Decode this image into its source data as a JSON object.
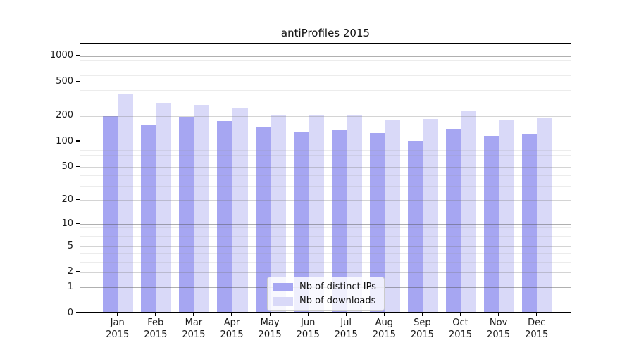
{
  "title": "antiProfiles 2015",
  "chart_data": {
    "type": "bar",
    "title": "antiProfiles 2015",
    "categories": [
      [
        "Jan",
        "2015"
      ],
      [
        "Feb",
        "2015"
      ],
      [
        "Mar",
        "2015"
      ],
      [
        "Apr",
        "2015"
      ],
      [
        "May",
        "2015"
      ],
      [
        "Jun",
        "2015"
      ],
      [
        "Jul",
        "2015"
      ],
      [
        "Aug",
        "2015"
      ],
      [
        "Sep",
        "2015"
      ],
      [
        "Oct",
        "2015"
      ],
      [
        "Nov",
        "2015"
      ],
      [
        "Dec",
        "2015"
      ]
    ],
    "series": [
      {
        "name": "Nb of distinct IPs",
        "color": "#a6a6f2",
        "values": [
          190,
          152,
          187,
          168,
          142,
          124,
          133,
          121,
          98,
          136,
          112,
          120
        ]
      },
      {
        "name": "Nb of downloads",
        "color": "#d9d9f8",
        "values": [
          353,
          268,
          258,
          235,
          200,
          197,
          194,
          172,
          179,
          223,
          171,
          181
        ]
      }
    ],
    "yscale": "log1p",
    "ymax": 1400,
    "ylim": [
      0,
      1400
    ],
    "y_ticks": [
      "0",
      "1",
      "2",
      "5",
      "10",
      "20",
      "50",
      "100",
      "200",
      "500",
      "1000"
    ],
    "y_tick_values": [
      0,
      1,
      2,
      5,
      10,
      20,
      50,
      100,
      200,
      500,
      1000
    ],
    "y_gridlines": {
      "major": [
        1,
        10,
        100,
        1000
      ],
      "mid": [
        2,
        5,
        20,
        50,
        200,
        500
      ],
      "minor": [
        3,
        4,
        6,
        7,
        8,
        9,
        30,
        40,
        60,
        70,
        80,
        90,
        300,
        400,
        600,
        700,
        800,
        900
      ]
    },
    "grid": "both",
    "legend_position": "lower-center",
    "background": "#ffffff",
    "spine_color": "#000000"
  }
}
